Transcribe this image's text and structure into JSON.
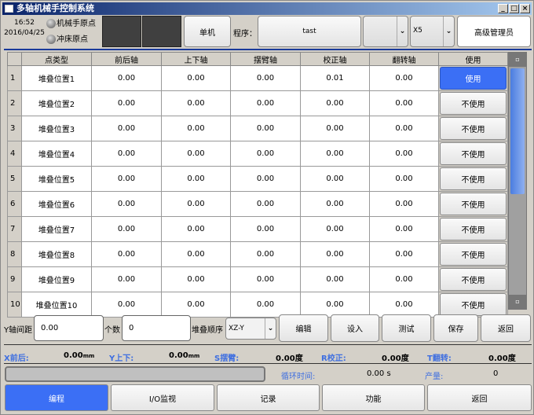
{
  "window": {
    "title": "多轴机械手控制系统"
  },
  "header": {
    "time": "16:52",
    "date": "2016/04/25",
    "origin1": "机械手原点",
    "origin2": "冲床原点",
    "mode_button": "单机",
    "program_label": "程序：",
    "program_name": "tast",
    "axis_select": "X5",
    "user_button": "高级管理员"
  },
  "table": {
    "columns": [
      "点类型",
      "前后轴",
      "上下轴",
      "摆臂轴",
      "校正轴",
      "翻转轴",
      "使用"
    ],
    "rows": [
      {
        "idx": "1",
        "name": "堆叠位置1",
        "v": [
          "0.00",
          "0.00",
          "0.00",
          "0.01",
          "0.00"
        ],
        "use": "使用",
        "on": true
      },
      {
        "idx": "2",
        "name": "堆叠位置2",
        "v": [
          "0.00",
          "0.00",
          "0.00",
          "0.00",
          "0.00"
        ],
        "use": "不使用"
      },
      {
        "idx": "3",
        "name": "堆叠位置3",
        "v": [
          "0.00",
          "0.00",
          "0.00",
          "0.00",
          "0.00"
        ],
        "use": "不使用"
      },
      {
        "idx": "4",
        "name": "堆叠位置4",
        "v": [
          "0.00",
          "0.00",
          "0.00",
          "0.00",
          "0.00"
        ],
        "use": "不使用"
      },
      {
        "idx": "5",
        "name": "堆叠位置5",
        "v": [
          "0.00",
          "0.00",
          "0.00",
          "0.00",
          "0.00"
        ],
        "use": "不使用"
      },
      {
        "idx": "6",
        "name": "堆叠位置6",
        "v": [
          "0.00",
          "0.00",
          "0.00",
          "0.00",
          "0.00"
        ],
        "use": "不使用"
      },
      {
        "idx": "7",
        "name": "堆叠位置7",
        "v": [
          "0.00",
          "0.00",
          "0.00",
          "0.00",
          "0.00"
        ],
        "use": "不使用"
      },
      {
        "idx": "8",
        "name": "堆叠位置8",
        "v": [
          "0.00",
          "0.00",
          "0.00",
          "0.00",
          "0.00"
        ],
        "use": "不使用"
      },
      {
        "idx": "9",
        "name": "堆叠位置9",
        "v": [
          "0.00",
          "0.00",
          "0.00",
          "0.00",
          "0.00"
        ],
        "use": "不使用"
      },
      {
        "idx": "10",
        "name": "堆叠位置10",
        "v": [
          "0.00",
          "0.00",
          "0.00",
          "0.00",
          "0.00"
        ],
        "use": "不使用"
      }
    ]
  },
  "controls": {
    "y_spacing_label": "Y轴间距",
    "y_spacing": "0.00",
    "count_label": "个数",
    "count": "0",
    "order_label": "堆叠顺序",
    "order": "XZ-Y",
    "edit": "编辑",
    "set": "设入",
    "test": "测试",
    "save": "保存",
    "back": "返回"
  },
  "status": {
    "x_label": "X前后:",
    "x_val": "0.00",
    "x_unit": "mm",
    "y_label": "Y上下:",
    "y_val": "0.00",
    "y_unit": "mm",
    "s_label": "S摆臂:",
    "s_val": "0.00",
    "s_unit": "度",
    "r_label": "R校正:",
    "r_val": "0.00",
    "r_unit": "度",
    "t_label": "T翻转:",
    "t_val": "0.00",
    "t_unit": "度",
    "cycle_label": "循环时间:",
    "cycle_val": "0.00 s",
    "output_label": "产量:",
    "output_val": "0",
    "progress": 0
  },
  "nav": [
    "编程",
    "I/O监视",
    "记录",
    "功能",
    "返回"
  ],
  "colors": {
    "accent": "#3b6ff5",
    "label_blue": "#3f6fe0"
  }
}
